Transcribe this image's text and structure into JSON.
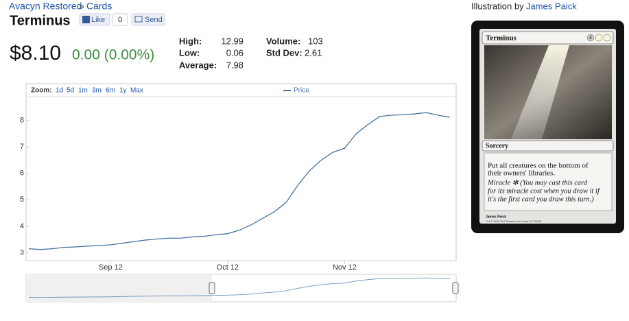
{
  "breadcrumb": {
    "set": "Avacyn Restored",
    "separator": "»",
    "section": "Cards"
  },
  "title": "Terminus",
  "social": {
    "like": "Like",
    "like_count": "0",
    "send": "Send"
  },
  "price": {
    "current": "$8.10",
    "change": "0.00 (0.00%)"
  },
  "stats": {
    "high_label": "High:",
    "high": 12.99,
    "low_label": "Low:",
    "low": 0.06,
    "average_label": "Average:",
    "average": 7.98,
    "volume_label": "Volume:",
    "volume": 103,
    "std_dev_label": "Std Dev:",
    "std_dev": 2.61
  },
  "illustration": {
    "label": "Illustration by",
    "artist": "James Paick"
  },
  "card": {
    "name": "Terminus",
    "mana_cost": "4",
    "type_line": "Sorcery",
    "rules_text": [
      "Put all creatures on the bottom of",
      "their owners' libraries."
    ],
    "miracle_text": [
      "Miracle ✻ (You may cast this card",
      "for its miracle cost when you draw it if",
      "it's the first card you draw this turn.)"
    ],
    "artist": "James Paick",
    "copyright": "™ & © 1993–2012 Wizards of the Coast LLC 36/244"
  },
  "chart": {
    "type": "line",
    "zoom_label": "Zoom:",
    "zoom_options": [
      "1d",
      "5d",
      "1m",
      "3m",
      "6m",
      "1y",
      "Max"
    ],
    "categories": [
      null,
      null,
      null,
      null,
      null,
      null,
      null,
      "Sep 12",
      null,
      null,
      null,
      null,
      null,
      null,
      null,
      null,
      null,
      "Oct 12",
      null,
      null,
      null,
      null,
      null,
      null,
      null,
      null,
      null,
      "Nov 12",
      null,
      null,
      null,
      null,
      null,
      null,
      null,
      null,
      null
    ],
    "series": [
      {
        "name": "Price",
        "color": "#4572a7",
        "values": [
          3.15,
          3.12,
          3.15,
          3.2,
          3.22,
          3.25,
          3.27,
          3.3,
          3.36,
          3.42,
          3.48,
          3.52,
          3.55,
          3.55,
          3.6,
          3.62,
          3.68,
          3.72,
          3.85,
          4.05,
          4.3,
          4.55,
          4.9,
          5.55,
          6.1,
          6.5,
          6.8,
          6.95,
          7.5,
          7.85,
          8.15,
          8.2,
          8.22,
          8.25,
          8.3,
          8.2,
          8.12
        ]
      }
    ],
    "ylim": [
      2.7,
      8.9
    ],
    "yticks": [
      3,
      4,
      5,
      6,
      7,
      8
    ]
  }
}
